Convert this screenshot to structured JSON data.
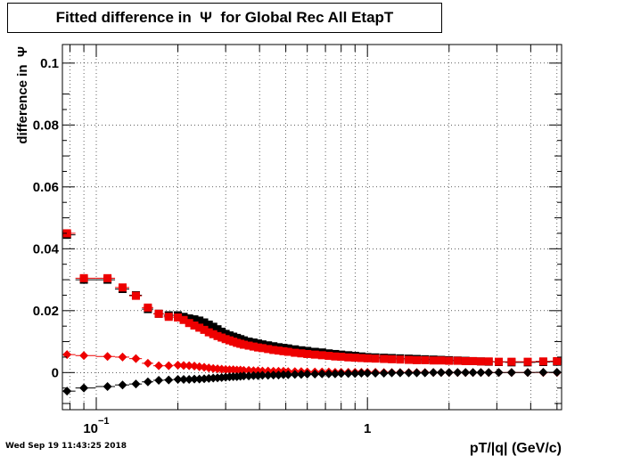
{
  "title": "Fitted difference in  Ψ  for Global Rec All EtapT",
  "timestamp": "Wed Sep 19 11:43:25 2018",
  "colors": {
    "black_series": "#000000",
    "red_series": "#ee0000",
    "axis": "#000000",
    "grid": "#000000"
  },
  "chart_data": {
    "type": "scatter",
    "title": "Fitted difference in  Ψ  for Global Rec All EtapT",
    "xlabel": "pT/|q| (GeV/c)",
    "ylabel": "difference in  Ψ",
    "xscale": "log",
    "xlim": [
      0.075,
      5.2
    ],
    "ylim": [
      -0.012,
      0.106
    ],
    "grid": true,
    "legend": "none",
    "x_tick_labels": [
      {
        "value": 0.1,
        "label": "10",
        "exponent": "−1"
      },
      {
        "value": 1,
        "label": "1",
        "exponent": ""
      }
    ],
    "y_tick_labels": [
      {
        "value": 0.1,
        "label": "0.1"
      },
      {
        "value": 0.08,
        "label": "0.08"
      },
      {
        "value": 0.06,
        "label": "0.06"
      },
      {
        "value": 0.04,
        "label": "0.04"
      },
      {
        "value": 0.02,
        "label": "0.02"
      },
      {
        "value": 0,
        "label": "0"
      }
    ],
    "series": [
      {
        "marker": "square",
        "color": "#000000",
        "x": [
          0.078,
          0.09,
          0.11,
          0.125,
          0.14,
          0.155,
          0.17,
          0.185,
          0.2,
          0.21,
          0.22,
          0.23,
          0.24,
          0.25,
          0.26,
          0.27,
          0.28,
          0.29,
          0.3,
          0.31,
          0.32,
          0.33,
          0.34,
          0.35,
          0.365,
          0.38,
          0.395,
          0.41,
          0.43,
          0.45,
          0.47,
          0.49,
          0.51,
          0.54,
          0.57,
          0.6,
          0.64,
          0.68,
          0.72,
          0.76,
          0.8,
          0.85,
          0.9,
          0.95,
          1.0,
          1.07,
          1.15,
          1.23,
          1.32,
          1.42,
          1.52,
          1.63,
          1.75,
          1.87,
          2.0,
          2.15,
          2.3,
          2.45,
          2.62,
          2.8,
          3.05,
          3.4,
          3.9,
          4.45,
          5.0
        ],
        "y": [
          0.0445,
          0.03,
          0.03,
          0.027,
          0.025,
          0.0205,
          0.019,
          0.0185,
          0.0185,
          0.018,
          0.0175,
          0.0172,
          0.0168,
          0.0162,
          0.0155,
          0.0148,
          0.014,
          0.0132,
          0.0125,
          0.012,
          0.0116,
          0.0112,
          0.0108,
          0.0104,
          0.01,
          0.0097,
          0.0094,
          0.0091,
          0.0088,
          0.0085,
          0.0082,
          0.008,
          0.0078,
          0.0075,
          0.0072,
          0.007,
          0.0067,
          0.0065,
          0.0062,
          0.006,
          0.0058,
          0.0056,
          0.0054,
          0.0052,
          0.005,
          0.0049,
          0.0048,
          0.0047,
          0.0046,
          0.0045,
          0.0044,
          0.0043,
          0.0042,
          0.0041,
          0.004,
          0.0039,
          0.0038,
          0.0037,
          0.0036,
          0.0035,
          0.0034,
          0.0033,
          0.0033,
          0.0034,
          0.0035
        ]
      },
      {
        "marker": "square",
        "color": "#ee0000",
        "x": [
          0.078,
          0.09,
          0.11,
          0.125,
          0.14,
          0.155,
          0.17,
          0.185,
          0.2,
          0.21,
          0.22,
          0.23,
          0.24,
          0.25,
          0.26,
          0.27,
          0.28,
          0.29,
          0.3,
          0.31,
          0.32,
          0.33,
          0.34,
          0.35,
          0.365,
          0.38,
          0.395,
          0.41,
          0.43,
          0.45,
          0.47,
          0.49,
          0.51,
          0.54,
          0.57,
          0.6,
          0.64,
          0.68,
          0.72,
          0.76,
          0.8,
          0.85,
          0.9,
          0.95,
          1.0,
          1.07,
          1.15,
          1.23,
          1.32,
          1.42,
          1.52,
          1.63,
          1.75,
          1.87,
          2.0,
          2.15,
          2.3,
          2.45,
          2.62,
          2.8,
          3.05,
          3.4,
          3.9,
          4.45,
          5.0
        ],
        "y": [
          0.045,
          0.0305,
          0.0305,
          0.0275,
          0.0248,
          0.021,
          0.019,
          0.018,
          0.0178,
          0.017,
          0.016,
          0.0152,
          0.0145,
          0.0138,
          0.013,
          0.0124,
          0.0118,
          0.0113,
          0.0108,
          0.0104,
          0.01,
          0.0096,
          0.0093,
          0.009,
          0.0087,
          0.0084,
          0.0081,
          0.0079,
          0.0076,
          0.0073,
          0.0071,
          0.0069,
          0.0067,
          0.0064,
          0.0062,
          0.006,
          0.0058,
          0.0056,
          0.0054,
          0.0052,
          0.0051,
          0.0049,
          0.0048,
          0.0047,
          0.0046,
          0.0045,
          0.0044,
          0.0043,
          0.0042,
          0.0041,
          0.004,
          0.004,
          0.0039,
          0.0039,
          0.0038,
          0.0038,
          0.0037,
          0.0037,
          0.0036,
          0.0036,
          0.0035,
          0.0035,
          0.0035,
          0.0036,
          0.0037
        ]
      },
      {
        "marker": "diamond",
        "color": "#ee0000",
        "x": [
          0.078,
          0.09,
          0.11,
          0.125,
          0.14,
          0.155,
          0.17,
          0.185,
          0.2,
          0.21,
          0.22,
          0.23,
          0.24,
          0.25,
          0.26,
          0.27,
          0.28,
          0.29,
          0.3,
          0.31,
          0.32,
          0.33,
          0.34,
          0.35,
          0.365,
          0.38,
          0.395,
          0.41,
          0.43,
          0.45,
          0.47,
          0.49,
          0.51,
          0.54,
          0.57,
          0.6,
          0.64,
          0.68,
          0.72,
          0.76,
          0.8,
          0.85,
          0.9,
          0.95,
          1.0,
          1.07,
          1.15,
          1.23,
          1.32,
          1.42,
          1.52,
          1.63,
          1.75,
          1.87,
          2.0,
          2.15,
          2.3,
          2.45,
          2.62,
          2.8,
          3.05,
          3.4,
          3.9,
          4.45,
          5.0
        ],
        "y": [
          0.0058,
          0.0055,
          0.0052,
          0.005,
          0.0045,
          0.003,
          0.0022,
          0.0022,
          0.0024,
          0.0023,
          0.0022,
          0.0021,
          0.0019,
          0.0017,
          0.0015,
          0.0013,
          0.0012,
          0.0011,
          0.001,
          0.0009,
          0.0009,
          0.0008,
          0.0008,
          0.0007,
          0.0007,
          0.0006,
          0.0006,
          0.0005,
          0.0005,
          0.0004,
          0.0004,
          0.0004,
          0.0003,
          0.0003,
          0.0003,
          0.0002,
          0.0002,
          0.0002,
          0.0002,
          0.0001,
          0.0001,
          0.0001,
          0.0001,
          0.0001,
          0.0001,
          0.0001,
          0.0,
          0.0,
          0.0,
          0.0,
          0.0,
          0.0,
          0.0,
          0.0,
          0.0,
          0.0,
          0.0,
          0.0,
          0.0,
          0.0,
          0.0,
          0.0,
          0.0,
          0.0,
          0.0
        ]
      },
      {
        "marker": "diamond",
        "color": "#000000",
        "x": [
          0.078,
          0.09,
          0.11,
          0.125,
          0.14,
          0.155,
          0.17,
          0.185,
          0.2,
          0.21,
          0.22,
          0.23,
          0.24,
          0.25,
          0.26,
          0.27,
          0.28,
          0.29,
          0.3,
          0.31,
          0.32,
          0.33,
          0.34,
          0.35,
          0.365,
          0.38,
          0.395,
          0.41,
          0.43,
          0.45,
          0.47,
          0.49,
          0.51,
          0.54,
          0.57,
          0.6,
          0.64,
          0.68,
          0.72,
          0.76,
          0.8,
          0.85,
          0.9,
          0.95,
          1.0,
          1.07,
          1.15,
          1.23,
          1.32,
          1.42,
          1.52,
          1.63,
          1.75,
          1.87,
          2.0,
          2.15,
          2.3,
          2.45,
          2.62,
          2.8,
          3.05,
          3.4,
          3.9,
          4.45,
          5.0
        ],
        "y": [
          -0.006,
          -0.005,
          -0.0045,
          -0.004,
          -0.0037,
          -0.003,
          -0.0025,
          -0.0024,
          -0.0022,
          -0.0022,
          -0.0022,
          -0.0021,
          -0.0021,
          -0.002,
          -0.0019,
          -0.0018,
          -0.0017,
          -0.0016,
          -0.0015,
          -0.0014,
          -0.0013,
          -0.0013,
          -0.0012,
          -0.0011,
          -0.0011,
          -0.001,
          -0.001,
          -0.0009,
          -0.0009,
          -0.0008,
          -0.0008,
          -0.0007,
          -0.0007,
          -0.0006,
          -0.0006,
          -0.0005,
          -0.0005,
          -0.0004,
          -0.0004,
          -0.0004,
          -0.0003,
          -0.0003,
          -0.0003,
          -0.0002,
          -0.0002,
          -0.0002,
          -0.0002,
          -0.0001,
          -0.0001,
          -0.0001,
          -0.0001,
          -0.0001,
          0.0,
          0.0,
          0.0,
          0.0,
          0.0,
          0.0,
          0.0,
          0.0,
          0.0,
          0.0,
          0.0,
          0.0001,
          0.0001
        ]
      }
    ]
  }
}
